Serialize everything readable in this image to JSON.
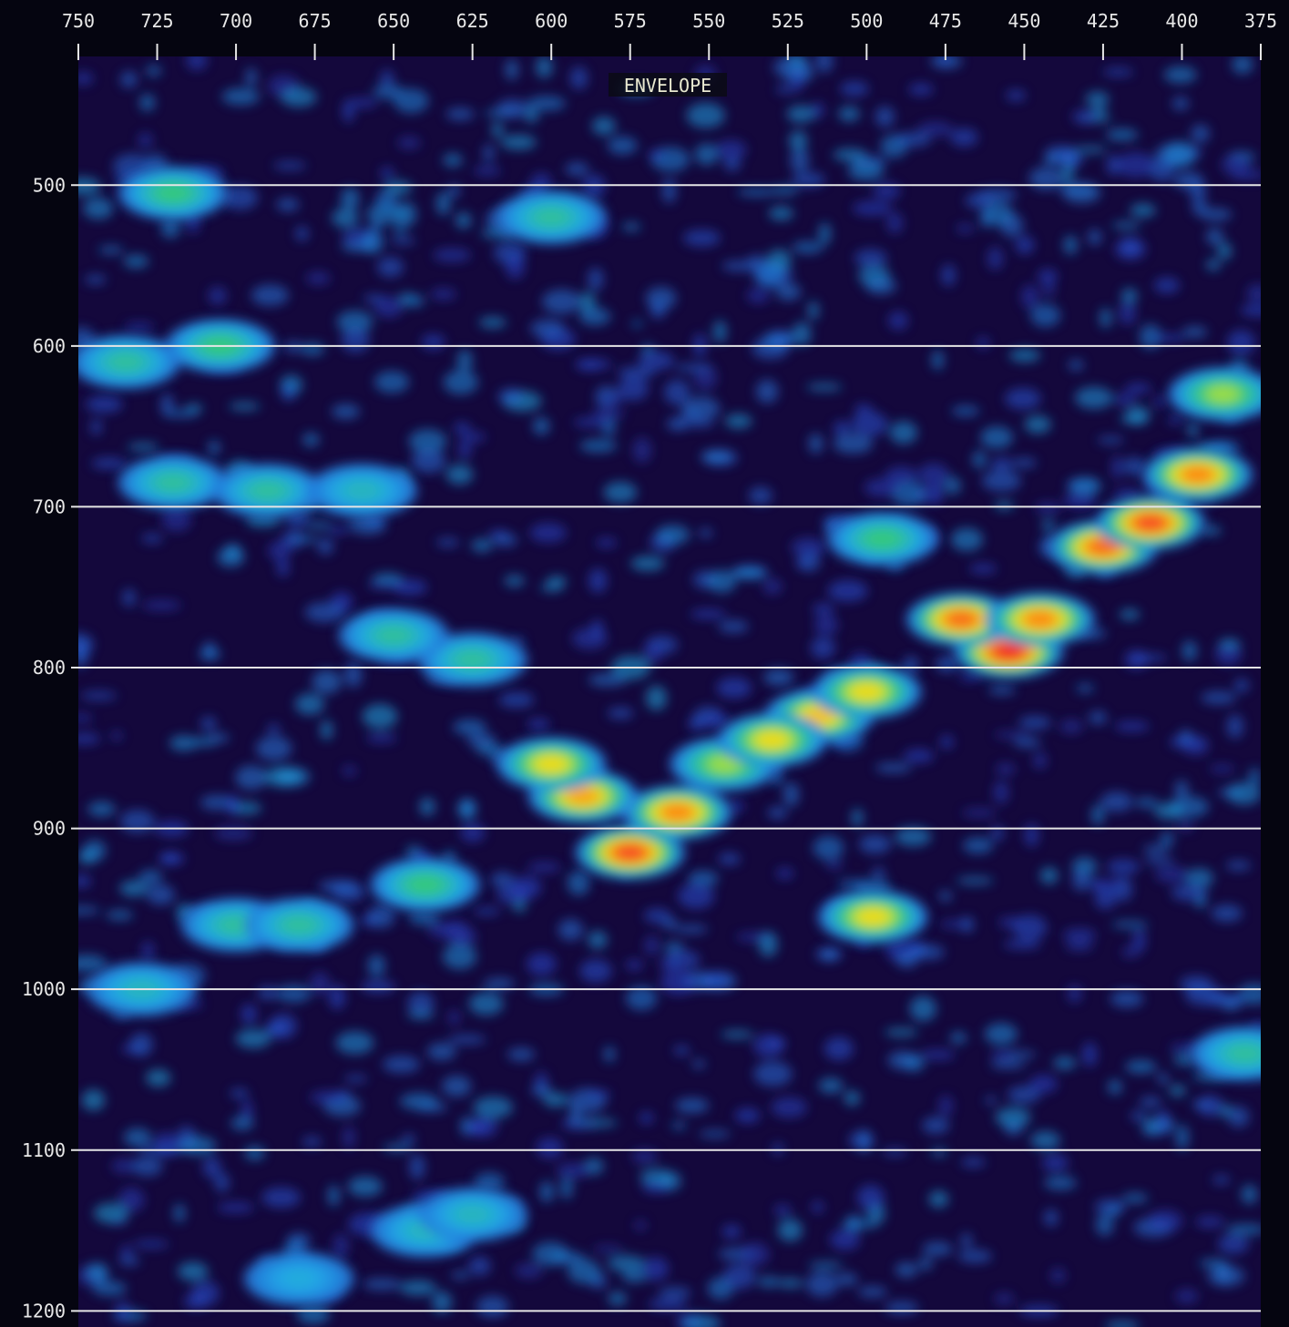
{
  "chart_data": {
    "type": "heatmap",
    "title": "ENVELOPE",
    "xlabel": "",
    "ylabel": "",
    "x_ticks": [
      750,
      725,
      700,
      675,
      650,
      625,
      600,
      575,
      550,
      525,
      500,
      475,
      450,
      425,
      400,
      375
    ],
    "y_ticks": [
      500,
      600,
      700,
      800,
      900,
      1000,
      1100,
      1200
    ],
    "xlim": [
      750,
      375
    ],
    "ylim": [
      420,
      1210
    ],
    "grid": {
      "horizontal": true,
      "vertical": false
    },
    "colorscale": [
      "#1a0a4a",
      "#2a4ad0",
      "#1fa8e6",
      "#34c97a",
      "#f5ec1a",
      "#ff8a12",
      "#f0202a"
    ],
    "background": "#14083c",
    "reflectors": [
      {
        "x": 575,
        "y": 915,
        "level": 0.95
      },
      {
        "x": 560,
        "y": 890,
        "level": 0.85
      },
      {
        "x": 590,
        "y": 880,
        "level": 0.8
      },
      {
        "x": 600,
        "y": 860,
        "level": 0.7
      },
      {
        "x": 545,
        "y": 860,
        "level": 0.6
      },
      {
        "x": 515,
        "y": 830,
        "level": 0.75
      },
      {
        "x": 530,
        "y": 845,
        "level": 0.7
      },
      {
        "x": 500,
        "y": 815,
        "level": 0.7
      },
      {
        "x": 455,
        "y": 790,
        "level": 1.0
      },
      {
        "x": 470,
        "y": 770,
        "level": 0.9
      },
      {
        "x": 445,
        "y": 770,
        "level": 0.85
      },
      {
        "x": 425,
        "y": 725,
        "level": 0.9
      },
      {
        "x": 410,
        "y": 710,
        "level": 0.95
      },
      {
        "x": 395,
        "y": 680,
        "level": 0.85
      },
      {
        "x": 387,
        "y": 630,
        "level": 0.6
      },
      {
        "x": 498,
        "y": 955,
        "level": 0.7
      },
      {
        "x": 495,
        "y": 720,
        "level": 0.5
      },
      {
        "x": 625,
        "y": 795,
        "level": 0.45
      },
      {
        "x": 700,
        "y": 960,
        "level": 0.45
      },
      {
        "x": 680,
        "y": 960,
        "level": 0.45
      },
      {
        "x": 640,
        "y": 935,
        "level": 0.5
      },
      {
        "x": 720,
        "y": 685,
        "level": 0.45
      },
      {
        "x": 690,
        "y": 690,
        "level": 0.45
      },
      {
        "x": 660,
        "y": 690,
        "level": 0.4
      },
      {
        "x": 735,
        "y": 610,
        "level": 0.45
      },
      {
        "x": 705,
        "y": 600,
        "level": 0.5
      },
      {
        "x": 720,
        "y": 505,
        "level": 0.5
      },
      {
        "x": 600,
        "y": 520,
        "level": 0.45
      },
      {
        "x": 650,
        "y": 780,
        "level": 0.45
      },
      {
        "x": 640,
        "y": 1150,
        "level": 0.4
      },
      {
        "x": 625,
        "y": 1140,
        "level": 0.4
      },
      {
        "x": 680,
        "y": 1180,
        "level": 0.35
      },
      {
        "x": 730,
        "y": 1000,
        "level": 0.4
      },
      {
        "x": 380,
        "y": 1040,
        "level": 0.45
      }
    ]
  }
}
